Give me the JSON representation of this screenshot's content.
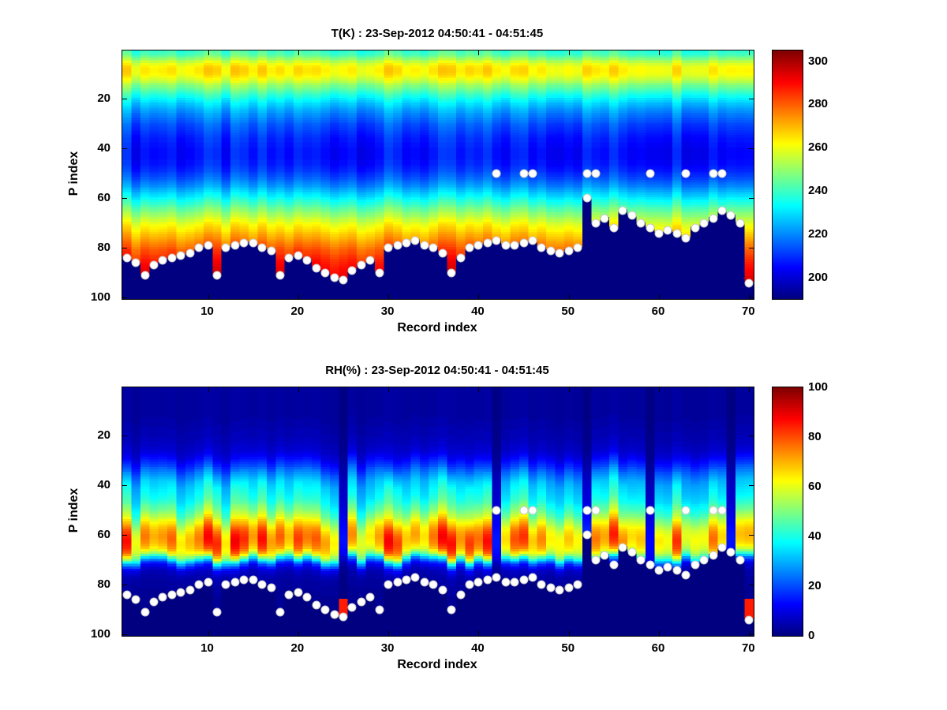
{
  "figure": {
    "background": "#ffffff",
    "axis_color": "#000000",
    "marker_color": "#ffffff"
  },
  "chart_data": [
    {
      "type": "heatmap",
      "title": "T(K) : 23-Sep-2012 04:50:41 - 04:51:45",
      "xlabel": "Record index",
      "ylabel": "P index",
      "x_range": [
        1,
        70
      ],
      "y_range": [
        1,
        100
      ],
      "y_reversed": true,
      "x_ticks": [
        10,
        20,
        30,
        40,
        50,
        60,
        70
      ],
      "y_ticks": [
        20,
        40,
        60,
        80,
        100
      ],
      "colormap": "jet",
      "grid": false,
      "value_range": [
        190,
        305
      ],
      "colorbar_ticks": [
        200,
        220,
        240,
        260,
        280,
        300
      ],
      "variation_mode": "offset",
      "variation_amplitude": 5,
      "profile": [
        240,
        242,
        246,
        251,
        256,
        260,
        263,
        264,
        264,
        263,
        261,
        258,
        255,
        251,
        248,
        245,
        242,
        239,
        236,
        233,
        231,
        228,
        226,
        224,
        222,
        220,
        219,
        217,
        216,
        214,
        213,
        212,
        211,
        210,
        209,
        208,
        208,
        207,
        207,
        206,
        206,
        206,
        206,
        206,
        207,
        207,
        208,
        209,
        210,
        212,
        213,
        215,
        217,
        219,
        221,
        224,
        226,
        229,
        231,
        234,
        237,
        239,
        242,
        245,
        247,
        250,
        252,
        255,
        257,
        260,
        262,
        264,
        266,
        268,
        270,
        272,
        274,
        276,
        278,
        280,
        282,
        283,
        285,
        286,
        288,
        289,
        290,
        291,
        292,
        293,
        294,
        295,
        296,
        296,
        297,
        297,
        298,
        298,
        299,
        299
      ],
      "surface_p_index": [
        84,
        86,
        91,
        87,
        85,
        84,
        83,
        82,
        80,
        79,
        91,
        80,
        79,
        78,
        78,
        80,
        81,
        91,
        84,
        83,
        85,
        88,
        90,
        92,
        93,
        89,
        87,
        85,
        90,
        80,
        79,
        78,
        77,
        79,
        80,
        82,
        90,
        84,
        80,
        79,
        78,
        77,
        79,
        79,
        78,
        77,
        80,
        81,
        82,
        81,
        80,
        60,
        70,
        68,
        72,
        65,
        67,
        70,
        72,
        74,
        73,
        74,
        76,
        72,
        70,
        68,
        65,
        67,
        70,
        94
      ],
      "elevated_marker_records": [
        42,
        45,
        46,
        52,
        53,
        59,
        63,
        66,
        67
      ],
      "elevated_marker_p": 50,
      "marker_color": "#ffffff"
    },
    {
      "type": "heatmap",
      "title": "RH(%) : 23-Sep-2012 04:50:41 - 04:51:45",
      "xlabel": "Record index",
      "ylabel": "P index",
      "x_range": [
        1,
        70
      ],
      "y_range": [
        1,
        100
      ],
      "y_reversed": true,
      "x_ticks": [
        10,
        20,
        30,
        40,
        50,
        60,
        70
      ],
      "y_ticks": [
        20,
        40,
        60,
        80,
        100
      ],
      "colormap": "jet",
      "grid": false,
      "value_range": [
        0,
        100
      ],
      "colorbar_ticks": [
        0,
        20,
        40,
        60,
        80,
        100
      ],
      "variation_mode": "scale",
      "band_jitter": 4,
      "low_value_records": [
        25,
        42,
        52,
        59,
        68
      ],
      "surface_hot_records": [
        25,
        70
      ],
      "surface_hot_value": 85,
      "surface_hot_from_p": 86,
      "profile": [
        3,
        3,
        3,
        3,
        3,
        3,
        3,
        3,
        3,
        3,
        3,
        3,
        3,
        4,
        4,
        4,
        4,
        5,
        5,
        5,
        5,
        6,
        6,
        7,
        7,
        8,
        9,
        10,
        12,
        14,
        16,
        18,
        20,
        23,
        25,
        27,
        29,
        31,
        33,
        34,
        35,
        36,
        37,
        38,
        39,
        40,
        42,
        44,
        46,
        48,
        50,
        53,
        56,
        59,
        62,
        65,
        68,
        70,
        72,
        73,
        74,
        74,
        73,
        72,
        70,
        67,
        62,
        55,
        45,
        34,
        24,
        16,
        11,
        8,
        6,
        5,
        4,
        4,
        3,
        3,
        3,
        3,
        2,
        2,
        2,
        2,
        2,
        2,
        2,
        2,
        2,
        2,
        2,
        2,
        2,
        2,
        2,
        2,
        2,
        2
      ],
      "surface_p_index": [
        84,
        86,
        91,
        87,
        85,
        84,
        83,
        82,
        80,
        79,
        91,
        80,
        79,
        78,
        78,
        80,
        81,
        91,
        84,
        83,
        85,
        88,
        90,
        92,
        93,
        89,
        87,
        85,
        90,
        80,
        79,
        78,
        77,
        79,
        80,
        82,
        90,
        84,
        80,
        79,
        78,
        77,
        79,
        79,
        78,
        77,
        80,
        81,
        82,
        81,
        80,
        60,
        70,
        68,
        72,
        65,
        67,
        70,
        72,
        74,
        73,
        74,
        76,
        72,
        70,
        68,
        65,
        67,
        70,
        94
      ],
      "elevated_marker_records": [
        42,
        45,
        46,
        52,
        53,
        59,
        63,
        66,
        67
      ],
      "elevated_marker_p": 50,
      "marker_color": "#ffffff"
    }
  ]
}
